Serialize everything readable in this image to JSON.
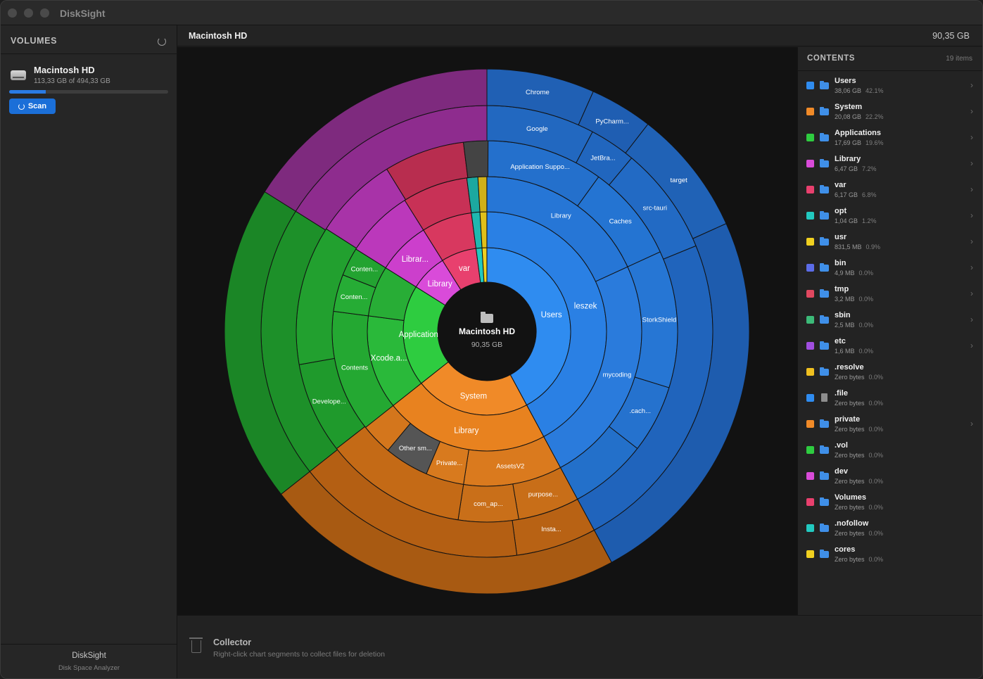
{
  "window": {
    "title": "DiskSight"
  },
  "sidebar": {
    "heading": "VOLUMES",
    "refresh_icon": "refresh-icon",
    "volume": {
      "name": "Macintosh HD",
      "usage": "113,33 GB of 494,33 GB",
      "used_fraction": 0.229,
      "icon": "drive-icon"
    },
    "scan_label": "Scan",
    "footer_title": "DiskSight",
    "footer_subtitle": "Disk Space Analyzer"
  },
  "header": {
    "title": "Macintosh HD",
    "size": "90,35 GB"
  },
  "center": {
    "name": "Macintosh HD",
    "size": "90,35 GB",
    "icon": "folder-icon"
  },
  "contents": {
    "heading": "CONTENTS",
    "count": "19 items",
    "items": [
      {
        "name": "Users",
        "size": "38,06 GB",
        "pct": "42.1%",
        "color": "#2f8cf0",
        "icon": "folder",
        "has_children": true
      },
      {
        "name": "System",
        "size": "20,08 GB",
        "pct": "22.2%",
        "color": "#f08a28",
        "icon": "folder",
        "has_children": true
      },
      {
        "name": "Applications",
        "size": "17,69 GB",
        "pct": "19.6%",
        "color": "#2ecc40",
        "icon": "folder",
        "has_children": true
      },
      {
        "name": "Library",
        "size": "6,47 GB",
        "pct": "7.2%",
        "color": "#d94bd9",
        "icon": "folder",
        "has_children": true
      },
      {
        "name": "var",
        "size": "6,17 GB",
        "pct": "6.8%",
        "color": "#e8406e",
        "icon": "folder",
        "has_children": true
      },
      {
        "name": "opt",
        "size": "1,04 GB",
        "pct": "1.2%",
        "color": "#22c9c0",
        "icon": "folder",
        "has_children": true
      },
      {
        "name": "usr",
        "size": "831,5 MB",
        "pct": "0.9%",
        "color": "#f0d020",
        "icon": "folder",
        "has_children": true
      },
      {
        "name": "bin",
        "size": "4,9 MB",
        "pct": "0.0%",
        "color": "#5b6ce8",
        "icon": "folder",
        "has_children": true
      },
      {
        "name": "tmp",
        "size": "3,2 MB",
        "pct": "0.0%",
        "color": "#e04860",
        "icon": "folder",
        "has_children": true
      },
      {
        "name": "sbin",
        "size": "2,5 MB",
        "pct": "0.0%",
        "color": "#3cba78",
        "icon": "folder",
        "has_children": true
      },
      {
        "name": "etc",
        "size": "1,6 MB",
        "pct": "0.0%",
        "color": "#a04ee0",
        "icon": "folder",
        "has_children": true
      },
      {
        "name": ".resolve",
        "size": "Zero bytes",
        "pct": "0.0%",
        "color": "#f0c020",
        "icon": "folder",
        "has_children": false
      },
      {
        "name": ".file",
        "size": "Zero bytes",
        "pct": "0.0%",
        "color": "#2f8cf0",
        "icon": "file",
        "has_children": false
      },
      {
        "name": "private",
        "size": "Zero bytes",
        "pct": "0.0%",
        "color": "#f08a28",
        "icon": "folder",
        "has_children": true
      },
      {
        "name": ".vol",
        "size": "Zero bytes",
        "pct": "0.0%",
        "color": "#2ecc40",
        "icon": "folder",
        "has_children": false
      },
      {
        "name": "dev",
        "size": "Zero bytes",
        "pct": "0.0%",
        "color": "#d94bd9",
        "icon": "folder",
        "has_children": false
      },
      {
        "name": "Volumes",
        "size": "Zero bytes",
        "pct": "0.0%",
        "color": "#e8406e",
        "icon": "folder",
        "has_children": false
      },
      {
        "name": ".nofollow",
        "size": "Zero bytes",
        "pct": "0.0%",
        "color": "#22c9c0",
        "icon": "folder",
        "has_children": false
      },
      {
        "name": "cores",
        "size": "Zero bytes",
        "pct": "0.0%",
        "color": "#f0d020",
        "icon": "folder",
        "has_children": false
      }
    ]
  },
  "collector": {
    "title": "Collector",
    "subtitle": "Right-click chart segments to collect files for deletion",
    "icon": "trash-icon"
  },
  "chart_data": {
    "type": "sunburst",
    "root": "Macintosh HD",
    "root_size_gb": 90.35,
    "rings": [
      [
        {
          "label": "Users",
          "value": 38.06,
          "color": "#2f8cf0"
        },
        {
          "label": "System",
          "value": 20.08,
          "color": "#f08a28"
        },
        {
          "label": "Applications",
          "value": 17.69,
          "color": "#2ecc40"
        },
        {
          "label": "Library",
          "value": 6.47,
          "color": "#d94bd9"
        },
        {
          "label": "var",
          "value": 6.17,
          "color": "#e8406e"
        },
        {
          "label": "",
          "value": 1.04,
          "color": "#22c9c0"
        },
        {
          "label": "",
          "value": 0.83,
          "color": "#f0d020"
        }
      ],
      [
        {
          "label": "leszek",
          "value": 38.06,
          "color": "#2a80e4"
        },
        {
          "label": "Library",
          "value": 20.08,
          "color": "#e8821f"
        },
        {
          "label": "Xcode.a...",
          "value": 11.5,
          "color": "#2ab93a"
        },
        {
          "label": "",
          "value": 6.19,
          "color": "#28ad36"
        },
        {
          "label": "Librar...",
          "value": 6.47,
          "color": "#cc3fcc"
        },
        {
          "label": "",
          "value": 6.17,
          "color": "#d8385f"
        },
        {
          "label": "",
          "value": 1.04,
          "color": "#1fb8b0"
        },
        {
          "label": "",
          "value": 0.83,
          "color": "#e0c01a"
        }
      ],
      [
        {
          "label": "Library",
          "value": 16.4,
          "color": "#2676d6"
        },
        {
          "label": "mycoding",
          "value": 21.66,
          "color": "#2a7bdc"
        },
        {
          "label": "AssetsV2",
          "value": 9.3,
          "color": "#da7a1e"
        },
        {
          "label": "Private...",
          "value": 3.6,
          "color": "#d87a1e"
        },
        {
          "label": "Other sm...",
          "value": 4.2,
          "color": "#555555"
        },
        {
          "label": "",
          "value": 2.98,
          "color": "#d4761c"
        },
        {
          "label": "Contents",
          "value": 11.5,
          "color": "#24a832"
        },
        {
          "label": "Conten...",
          "value": 3.5,
          "color": "#26ac35"
        },
        {
          "label": "Conten...",
          "value": 2.69,
          "color": "#23a331"
        },
        {
          "label": "",
          "value": 6.47,
          "color": "#bb38bb"
        },
        {
          "label": "",
          "value": 6.17,
          "color": "#c83156"
        },
        {
          "label": "",
          "value": 1.04,
          "color": "#1ca8a0"
        },
        {
          "label": "",
          "value": 0.83,
          "color": "#d0b018"
        }
      ],
      [
        {
          "label": "Application Suppo...",
          "value": 9.0,
          "color": "#2470cc"
        },
        {
          "label": "Caches",
          "value": 7.4,
          "color": "#2474d2"
        },
        {
          "label": "StorkShield",
          "value": 10.5,
          "color": "#2676d4"
        },
        {
          "label": ".cach...",
          "value": 5.2,
          "color": "#2572ce"
        },
        {
          "label": "",
          "value": 5.96,
          "color": "#2370ca"
        },
        {
          "label": "purpose...",
          "value": 4.7,
          "color": "#c86e18"
        },
        {
          "label": "com_ap...",
          "value": 4.6,
          "color": "#c96f19"
        },
        {
          "label": "",
          "value": 10.88,
          "color": "#c46a16"
        },
        {
          "label": "Develope...",
          "value": 7.0,
          "color": "#1f9a2c"
        },
        {
          "label": "",
          "value": 10.69,
          "color": "#22a02f"
        },
        {
          "label": "",
          "value": 6.47,
          "color": "#a833a8"
        },
        {
          "label": "",
          "value": 6.17,
          "color": "#b82d4f"
        },
        {
          "label": "",
          "value": 1.87,
          "color": "#444444"
        }
      ],
      [
        {
          "label": "Google",
          "value": 7.0,
          "color": "#2268c0"
        },
        {
          "label": "JetBra...",
          "value": 3.0,
          "color": "#2166be"
        },
        {
          "label": "src-tauri",
          "value": 7.0,
          "color": "#226ac4"
        },
        {
          "label": "",
          "value": 21.06,
          "color": "#2064bc"
        },
        {
          "label": "Insta...",
          "value": 5.2,
          "color": "#b86214"
        },
        {
          "label": "",
          "value": 14.88,
          "color": "#b45f13"
        },
        {
          "label": "",
          "value": 17.69,
          "color": "#1d9029"
        },
        {
          "label": "",
          "value": 14.52,
          "color": "#8e2c8e"
        }
      ],
      [
        {
          "label": "Chrome",
          "value": 6.0,
          "color": "#2060b4"
        },
        {
          "label": "PyCharm...",
          "value": 3.5,
          "color": "#1f5eb2"
        },
        {
          "label": "target",
          "value": 7.0,
          "color": "#2062b6"
        },
        {
          "label": "",
          "value": 21.56,
          "color": "#1e5cae"
        },
        {
          "label": "",
          "value": 20.08,
          "color": "#a85a12"
        },
        {
          "label": "",
          "value": 17.69,
          "color": "#1b8626"
        },
        {
          "label": "",
          "value": 14.52,
          "color": "#7e2a7e"
        }
      ]
    ]
  }
}
